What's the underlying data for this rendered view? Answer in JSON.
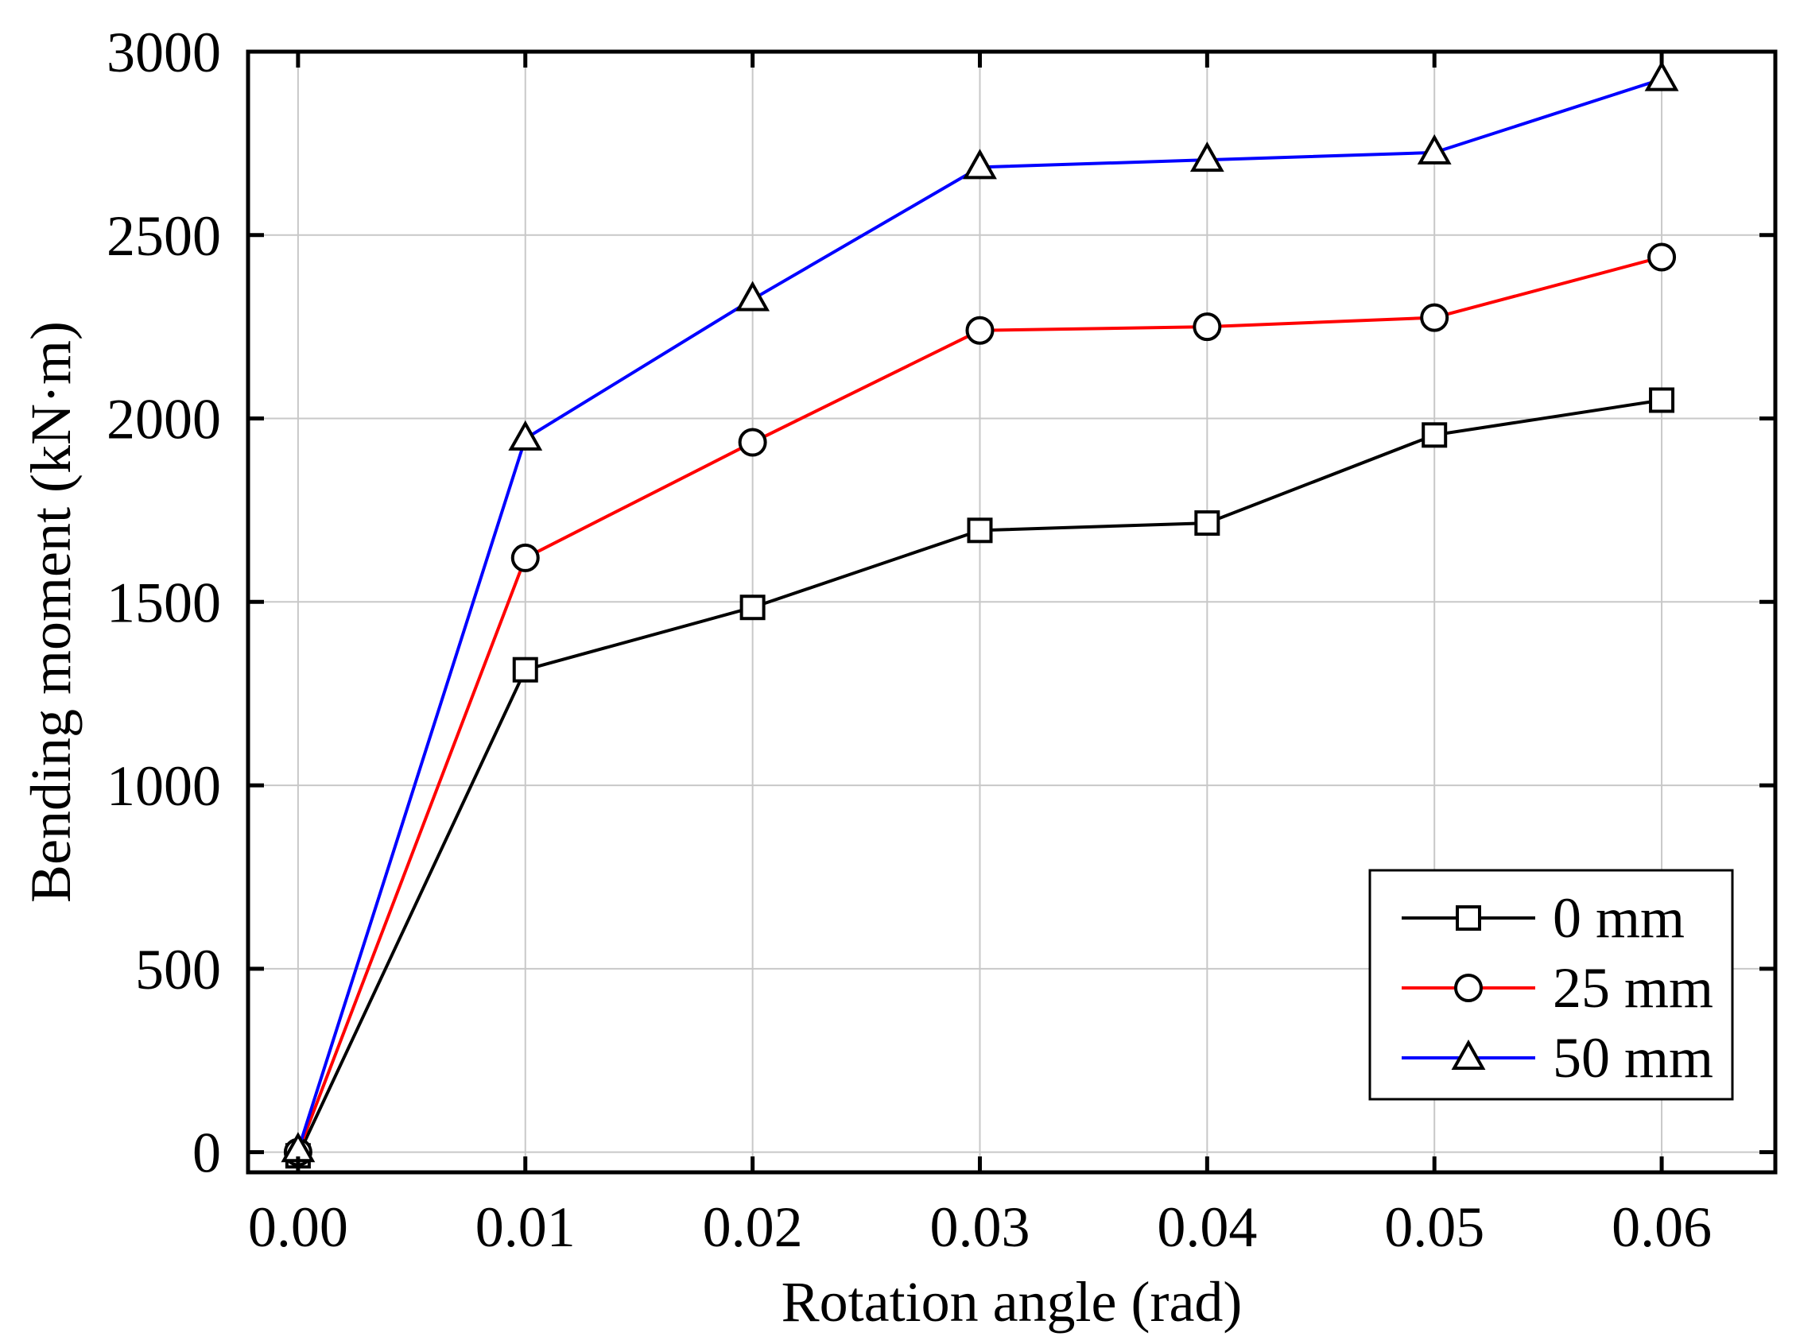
{
  "chart_data": {
    "type": "line",
    "title": "",
    "xlabel": "Rotation angle (rad)",
    "ylabel": "Bending moment (kN·m)",
    "xlim": [
      -0.0022,
      0.065
    ],
    "ylim": [
      -55,
      3000
    ],
    "x_ticks": [
      0.0,
      0.01,
      0.02,
      0.03,
      0.04,
      0.05,
      0.06
    ],
    "x_tick_labels": [
      "0.00",
      "0.01",
      "0.02",
      "0.03",
      "0.04",
      "0.05",
      "0.06"
    ],
    "y_ticks": [
      0,
      500,
      1000,
      1500,
      2000,
      2500,
      3000
    ],
    "y_tick_labels": [
      "0",
      "500",
      "1000",
      "1500",
      "2000",
      "2500",
      "3000"
    ],
    "grid": true,
    "legend_position": "bottom-right",
    "x": [
      0.0,
      0.01,
      0.02,
      0.03,
      0.04,
      0.05,
      0.06
    ],
    "series": [
      {
        "name": "0 mm",
        "color": "#000000",
        "marker": "square",
        "values": [
          -10,
          1315,
          1485,
          1695,
          1715,
          1955,
          2050
        ]
      },
      {
        "name": "25 mm",
        "color": "#ff0000",
        "marker": "circle",
        "values": [
          0,
          1620,
          1935,
          2240,
          2250,
          2275,
          2440
        ]
      },
      {
        "name": "50 mm",
        "color": "#0000ff",
        "marker": "triangle",
        "values": [
          5,
          1945,
          2325,
          2685,
          2705,
          2725,
          2925
        ]
      }
    ]
  }
}
